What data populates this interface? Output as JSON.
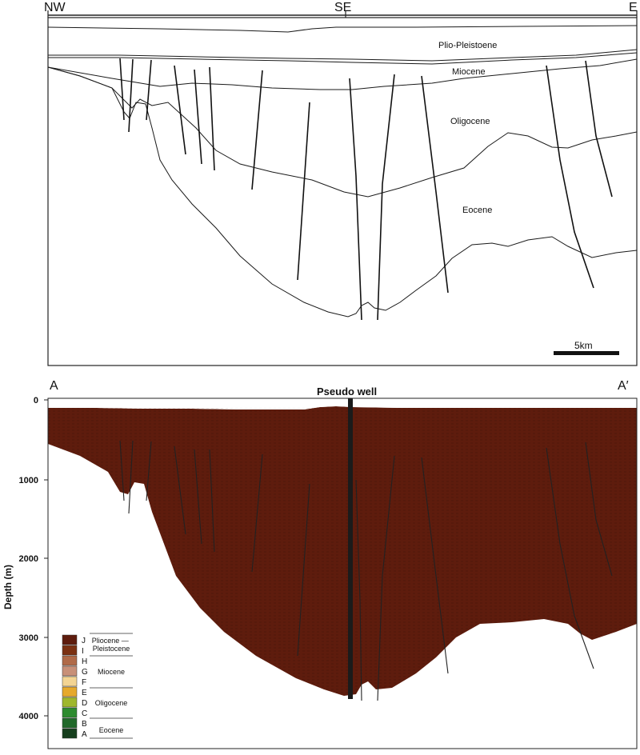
{
  "top_section": {
    "corner_labels": [
      "NW",
      "SE",
      "E"
    ],
    "formations": [
      "Plio-Pleistoene",
      "Miocene",
      "Oligocene",
      "Eocene"
    ],
    "scale_bar": "5km"
  },
  "bottom_section": {
    "end_labels": [
      "A",
      "A′"
    ],
    "well_label": "Pseudo well",
    "ylabel": "Depth (m)",
    "yticks": [
      "0",
      "1000",
      "2000",
      "3000",
      "4000"
    ],
    "legend": {
      "units": [
        "J",
        "I",
        "H",
        "G",
        "F",
        "E",
        "D",
        "C",
        "B",
        "A"
      ],
      "colors": [
        "#5e1c0d",
        "#7b3112",
        "#b06a48",
        "#c89078",
        "#f3d493",
        "#e6a92c",
        "#9fb72d",
        "#2d8b2f",
        "#21692a",
        "#163f1d"
      ],
      "epochs": [
        "Pliocene —\nPleistocene",
        "Miocene",
        "Oligocene",
        "Eocene"
      ]
    }
  }
}
